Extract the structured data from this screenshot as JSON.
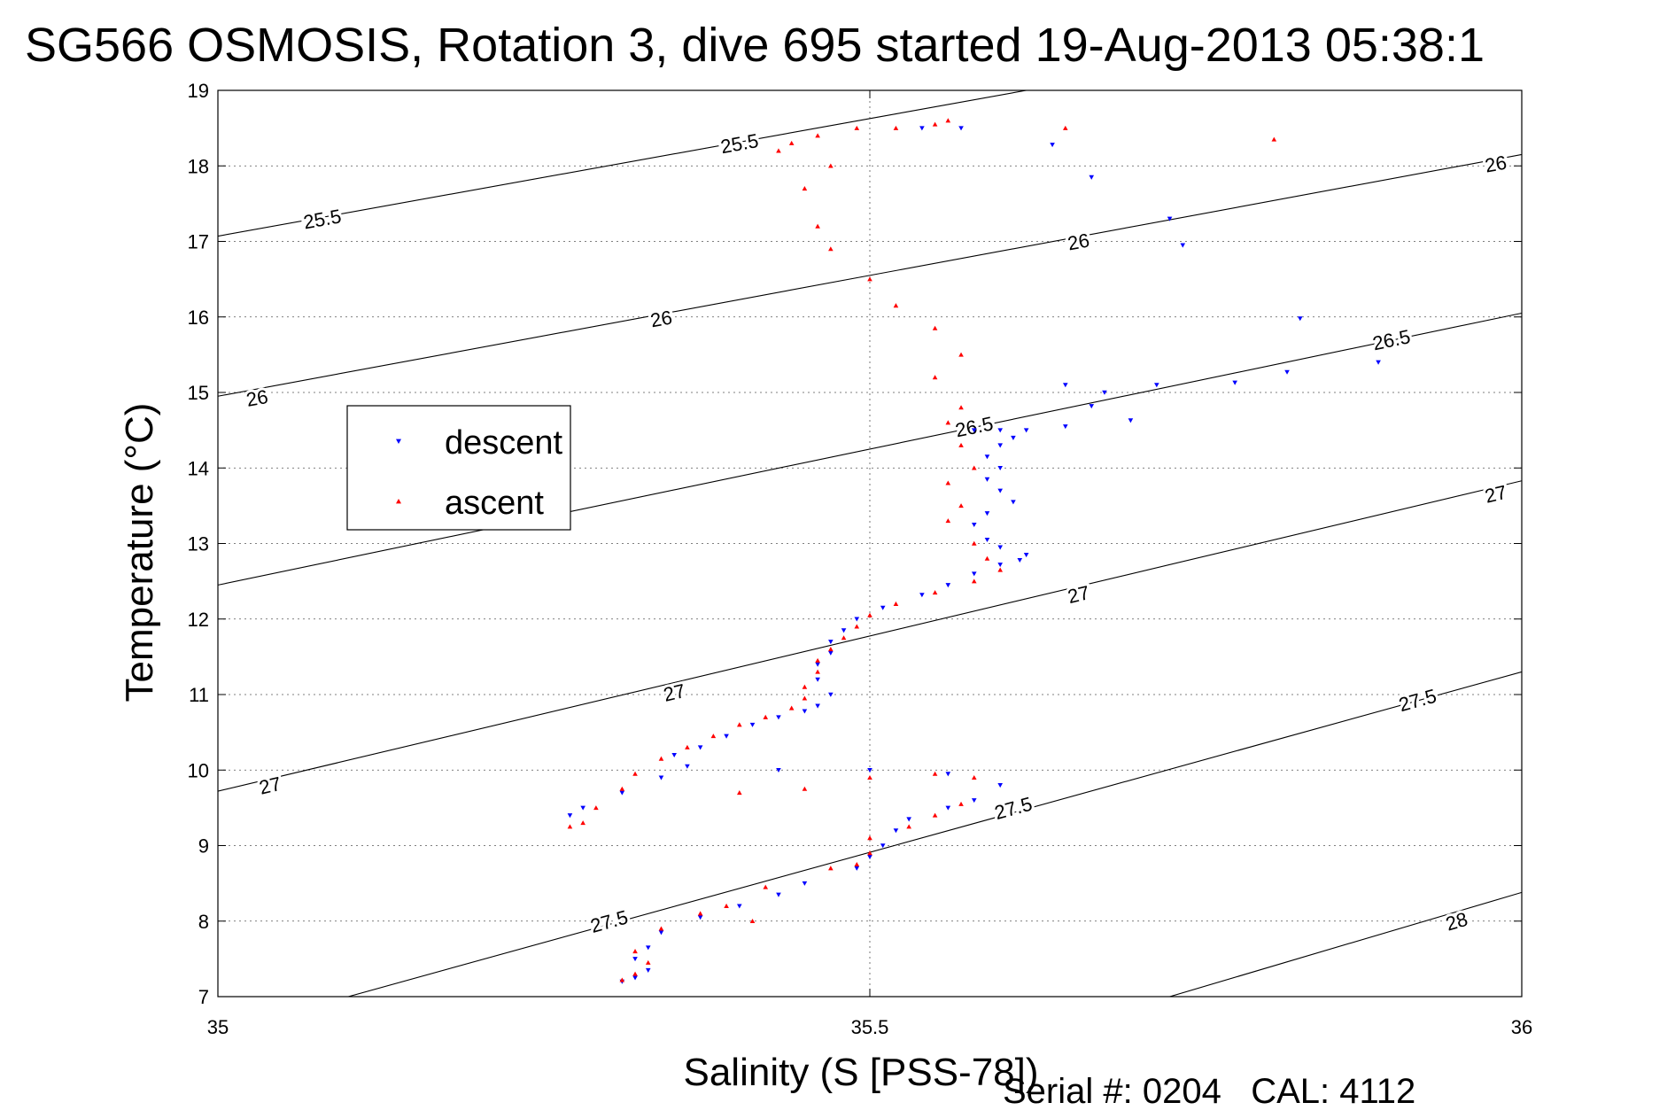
{
  "title": "SG566 OSMOSIS, Rotation 3, dive 695 started 19-Aug-2013 05:38:1",
  "footer": {
    "serial_label": "Serial #:",
    "serial_value": "0204",
    "cal_label": "CAL:",
    "cal_value": "4112"
  },
  "chart_data": {
    "type": "scatter",
    "xlabel": "Salinity (S [PSS-78])",
    "ylabel": "Temperature (°C)",
    "xlim": [
      35,
      36
    ],
    "ylim": [
      7,
      19
    ],
    "xticks": [
      "35",
      "35.5",
      "36"
    ],
    "yticks": [
      "7",
      "8",
      "9",
      "10",
      "11",
      "12",
      "13",
      "14",
      "15",
      "16",
      "17",
      "18",
      "19"
    ],
    "grid": true,
    "legend_position": "left-middle",
    "density_contours": [
      {
        "label": "25.5",
        "points": [
          [
            35.0,
            17.07
          ],
          [
            35.62,
            19.0
          ]
        ],
        "label_at": [
          [
            35.08,
            17.3
          ],
          [
            35.4,
            18.3
          ]
        ]
      },
      {
        "label": "26",
        "points": [
          [
            35.0,
            14.95
          ],
          [
            36.0,
            18.15
          ]
        ],
        "label_at": [
          [
            35.03,
            14.93
          ],
          [
            35.34,
            15.98
          ],
          [
            35.66,
            17.0
          ],
          [
            35.98,
            18.03
          ]
        ]
      },
      {
        "label": "26.5",
        "points": [
          [
            35.0,
            12.45
          ],
          [
            36.0,
            16.05
          ]
        ],
        "label_at": [
          [
            35.58,
            14.55
          ],
          [
            35.9,
            15.7
          ]
        ]
      },
      {
        "label": "27",
        "points": [
          [
            35.0,
            9.72
          ],
          [
            36.0,
            13.83
          ]
        ],
        "label_at": [
          [
            35.04,
            9.8
          ],
          [
            35.35,
            11.03
          ],
          [
            35.66,
            12.33
          ],
          [
            35.98,
            13.66
          ]
        ]
      },
      {
        "label": "27.5",
        "points": [
          [
            35.1,
            7.0
          ],
          [
            36.0,
            11.3
          ]
        ],
        "label_at": [
          [
            35.3,
            8.0
          ],
          [
            35.61,
            9.5
          ],
          [
            35.92,
            10.93
          ]
        ]
      },
      {
        "label": "28",
        "points": [
          [
            35.73,
            7.0
          ],
          [
            36.0,
            8.38
          ]
        ],
        "label_at": [
          [
            35.95,
            8.0
          ]
        ]
      }
    ],
    "series": [
      {
        "name": "descent",
        "color": "#0000ff",
        "marker": "triangle-down",
        "points": [
          [
            35.64,
            18.28
          ],
          [
            35.67,
            17.85
          ],
          [
            35.73,
            17.3
          ],
          [
            35.74,
            16.95
          ],
          [
            35.83,
            15.98
          ],
          [
            35.89,
            15.4
          ],
          [
            35.65,
            15.1
          ],
          [
            35.68,
            15.0
          ],
          [
            35.7,
            14.63
          ],
          [
            35.67,
            14.82
          ],
          [
            35.72,
            15.1
          ],
          [
            35.78,
            15.13
          ],
          [
            35.82,
            15.27
          ],
          [
            35.58,
            14.5
          ],
          [
            35.6,
            14.5
          ],
          [
            35.62,
            14.5
          ],
          [
            35.65,
            14.55
          ],
          [
            35.61,
            14.4
          ],
          [
            35.6,
            14.3
          ],
          [
            35.59,
            14.15
          ],
          [
            35.6,
            14.0
          ],
          [
            35.59,
            13.85
          ],
          [
            35.6,
            13.7
          ],
          [
            35.61,
            13.55
          ],
          [
            35.59,
            13.4
          ],
          [
            35.58,
            13.25
          ],
          [
            35.59,
            13.05
          ],
          [
            35.6,
            12.95
          ],
          [
            35.62,
            12.85
          ],
          [
            35.615,
            12.78
          ],
          [
            35.6,
            12.72
          ],
          [
            35.58,
            12.6
          ],
          [
            35.56,
            12.45
          ],
          [
            35.54,
            12.32
          ],
          [
            35.51,
            12.15
          ],
          [
            35.49,
            12.0
          ],
          [
            35.48,
            11.85
          ],
          [
            35.47,
            11.7
          ],
          [
            35.47,
            11.55
          ],
          [
            35.46,
            11.4
          ],
          [
            35.46,
            11.2
          ],
          [
            35.47,
            11.0
          ],
          [
            35.46,
            10.85
          ],
          [
            35.45,
            10.78
          ],
          [
            35.43,
            10.7
          ],
          [
            35.41,
            10.6
          ],
          [
            35.39,
            10.45
          ],
          [
            35.37,
            10.3
          ],
          [
            35.35,
            10.2
          ],
          [
            35.36,
            10.05
          ],
          [
            35.43,
            10.0
          ],
          [
            35.5,
            10.0
          ],
          [
            35.56,
            9.95
          ],
          [
            35.6,
            9.8
          ],
          [
            35.58,
            9.6
          ],
          [
            35.56,
            9.5
          ],
          [
            35.53,
            9.35
          ],
          [
            35.52,
            9.2
          ],
          [
            35.51,
            9.0
          ],
          [
            35.5,
            8.85
          ],
          [
            35.49,
            8.7
          ],
          [
            35.45,
            8.5
          ],
          [
            35.43,
            8.35
          ],
          [
            35.4,
            8.2
          ],
          [
            35.37,
            8.05
          ],
          [
            35.34,
            7.85
          ],
          [
            35.33,
            7.65
          ],
          [
            35.32,
            7.5
          ],
          [
            35.33,
            7.35
          ],
          [
            35.32,
            7.25
          ],
          [
            35.31,
            7.2
          ],
          [
            35.34,
            9.9
          ],
          [
            35.31,
            9.7
          ],
          [
            35.28,
            9.5
          ],
          [
            35.27,
            9.4
          ],
          [
            35.54,
            18.5
          ],
          [
            35.57,
            18.5
          ]
        ]
      },
      {
        "name": "ascent",
        "color": "#ff0000",
        "marker": "triangle-up",
        "points": [
          [
            35.56,
            18.6
          ],
          [
            35.55,
            18.55
          ],
          [
            35.52,
            18.5
          ],
          [
            35.49,
            18.5
          ],
          [
            35.46,
            18.4
          ],
          [
            35.44,
            18.3
          ],
          [
            35.43,
            18.2
          ],
          [
            35.47,
            18.0
          ],
          [
            35.45,
            17.7
          ],
          [
            35.46,
            17.2
          ],
          [
            35.47,
            16.9
          ],
          [
            35.5,
            16.5
          ],
          [
            35.52,
            16.15
          ],
          [
            35.55,
            15.85
          ],
          [
            35.57,
            15.5
          ],
          [
            35.55,
            15.2
          ],
          [
            35.57,
            14.8
          ],
          [
            35.56,
            14.6
          ],
          [
            35.57,
            14.3
          ],
          [
            35.58,
            14.0
          ],
          [
            35.56,
            13.8
          ],
          [
            35.57,
            13.5
          ],
          [
            35.56,
            13.3
          ],
          [
            35.58,
            13.0
          ],
          [
            35.59,
            12.8
          ],
          [
            35.6,
            12.65
          ],
          [
            35.58,
            12.5
          ],
          [
            35.55,
            12.35
          ],
          [
            35.52,
            12.2
          ],
          [
            35.5,
            12.05
          ],
          [
            35.49,
            11.9
          ],
          [
            35.48,
            11.75
          ],
          [
            35.47,
            11.6
          ],
          [
            35.46,
            11.45
          ],
          [
            35.46,
            11.3
          ],
          [
            35.45,
            11.1
          ],
          [
            35.45,
            10.95
          ],
          [
            35.44,
            10.82
          ],
          [
            35.42,
            10.7
          ],
          [
            35.4,
            10.6
          ],
          [
            35.38,
            10.45
          ],
          [
            35.36,
            10.3
          ],
          [
            35.34,
            10.15
          ],
          [
            35.32,
            9.95
          ],
          [
            35.31,
            9.75
          ],
          [
            35.29,
            9.5
          ],
          [
            35.28,
            9.3
          ],
          [
            35.27,
            9.25
          ],
          [
            35.4,
            9.7
          ],
          [
            35.45,
            9.75
          ],
          [
            35.5,
            9.9
          ],
          [
            35.55,
            9.95
          ],
          [
            35.58,
            9.9
          ],
          [
            35.57,
            9.55
          ],
          [
            35.55,
            9.4
          ],
          [
            35.53,
            9.25
          ],
          [
            35.5,
            9.1
          ],
          [
            35.5,
            8.9
          ],
          [
            35.49,
            8.75
          ],
          [
            35.47,
            8.7
          ],
          [
            35.42,
            8.45
          ],
          [
            35.39,
            8.2
          ],
          [
            35.37,
            8.1
          ],
          [
            35.34,
            7.9
          ],
          [
            35.32,
            7.6
          ],
          [
            35.33,
            7.45
          ],
          [
            35.32,
            7.3
          ],
          [
            35.31,
            7.22
          ],
          [
            35.65,
            18.5
          ],
          [
            35.81,
            18.35
          ],
          [
            35.41,
            8.0
          ]
        ]
      }
    ]
  }
}
